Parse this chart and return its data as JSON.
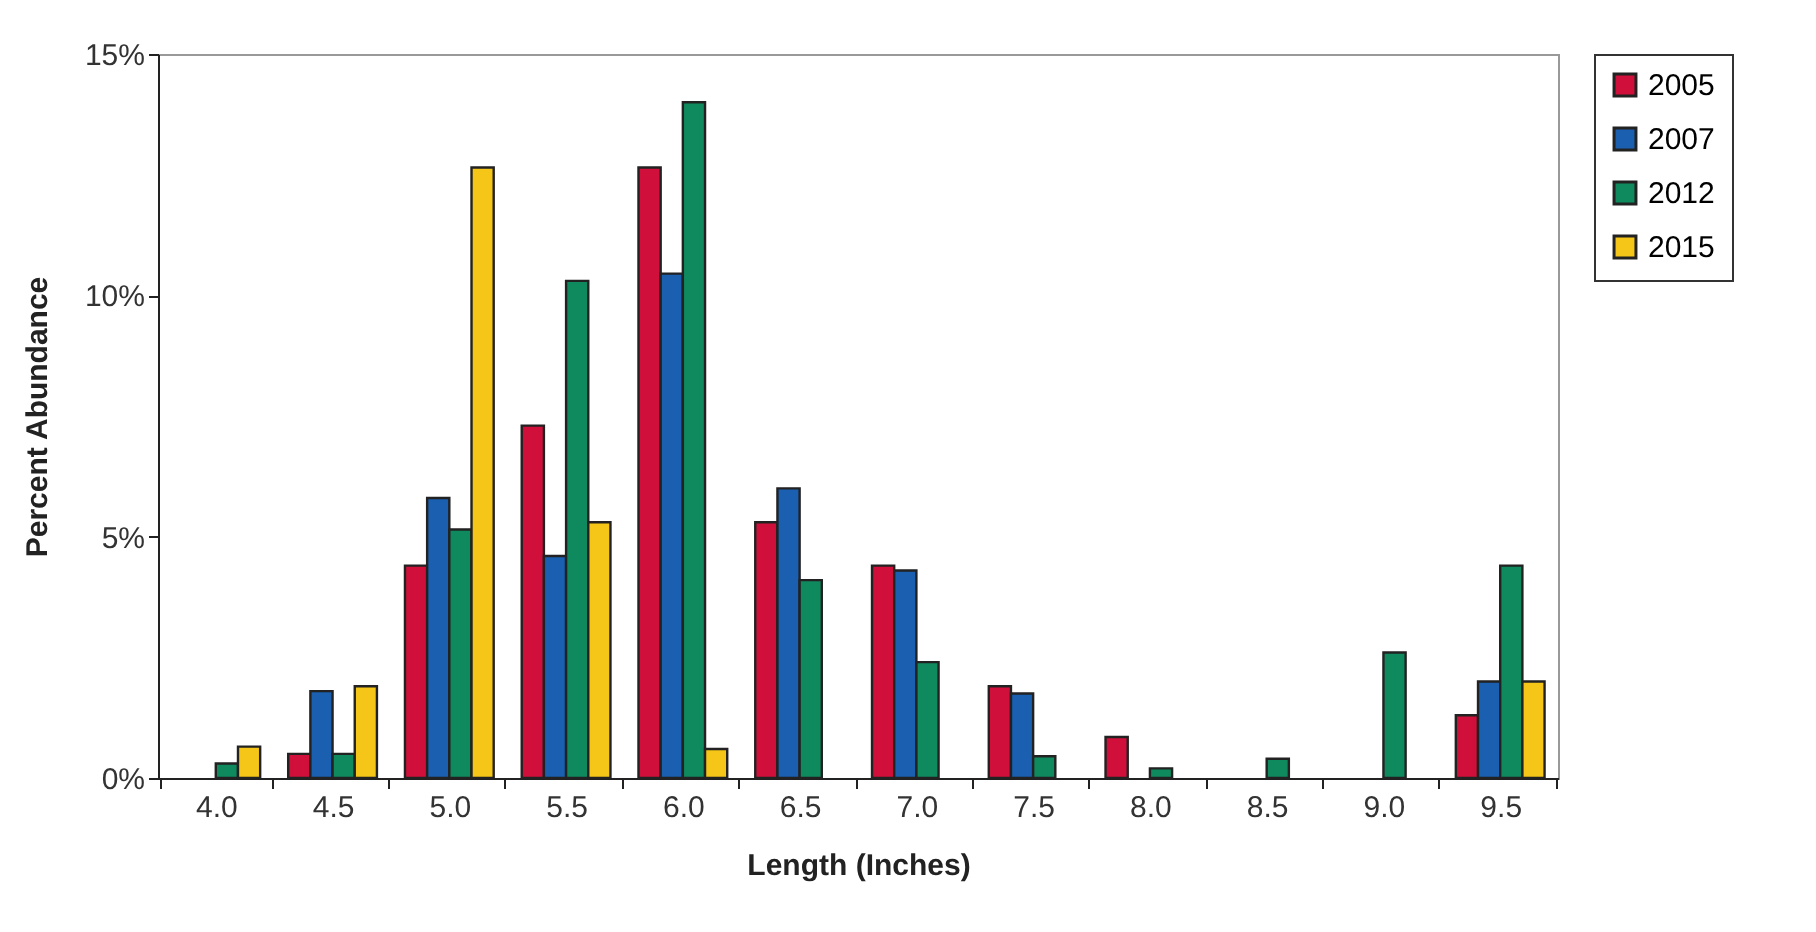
{
  "chart_data": {
    "type": "bar",
    "xlabel": "Length (Inches)",
    "ylabel": "Percent Abundance",
    "categories": [
      "4.0",
      "4.5",
      "5.0",
      "5.5",
      "6.0",
      "6.5",
      "7.0",
      "7.5",
      "8.0",
      "8.5",
      "9.0",
      "9.5"
    ],
    "series": [
      {
        "name": "2005",
        "color": "#d0103a",
        "values": [
          null,
          0.5,
          4.4,
          7.3,
          12.65,
          5.3,
          4.4,
          1.9,
          0.85,
          null,
          null,
          1.3
        ]
      },
      {
        "name": "2007",
        "color": "#1a5fb0",
        "values": [
          null,
          1.8,
          5.8,
          4.6,
          10.45,
          6.0,
          4.3,
          1.75,
          null,
          null,
          null,
          2.0
        ]
      },
      {
        "name": "2012",
        "color": "#0f8a5f",
        "values": [
          0.3,
          0.5,
          5.15,
          10.3,
          14.0,
          4.1,
          2.4,
          0.45,
          0.2,
          0.4,
          2.6,
          4.4
        ]
      },
      {
        "name": "2015",
        "color": "#f5c518",
        "values": [
          0.65,
          1.9,
          12.65,
          5.3,
          0.6,
          null,
          null,
          null,
          null,
          null,
          null,
          2.0
        ]
      }
    ],
    "ylim": [
      0,
      15
    ],
    "yticks": [
      {
        "value": 0,
        "label": "0%"
      },
      {
        "value": 5,
        "label": "5%"
      },
      {
        "value": 10,
        "label": "10%"
      },
      {
        "value": 15,
        "label": "15%"
      }
    ],
    "grid": false,
    "legend": "right"
  }
}
